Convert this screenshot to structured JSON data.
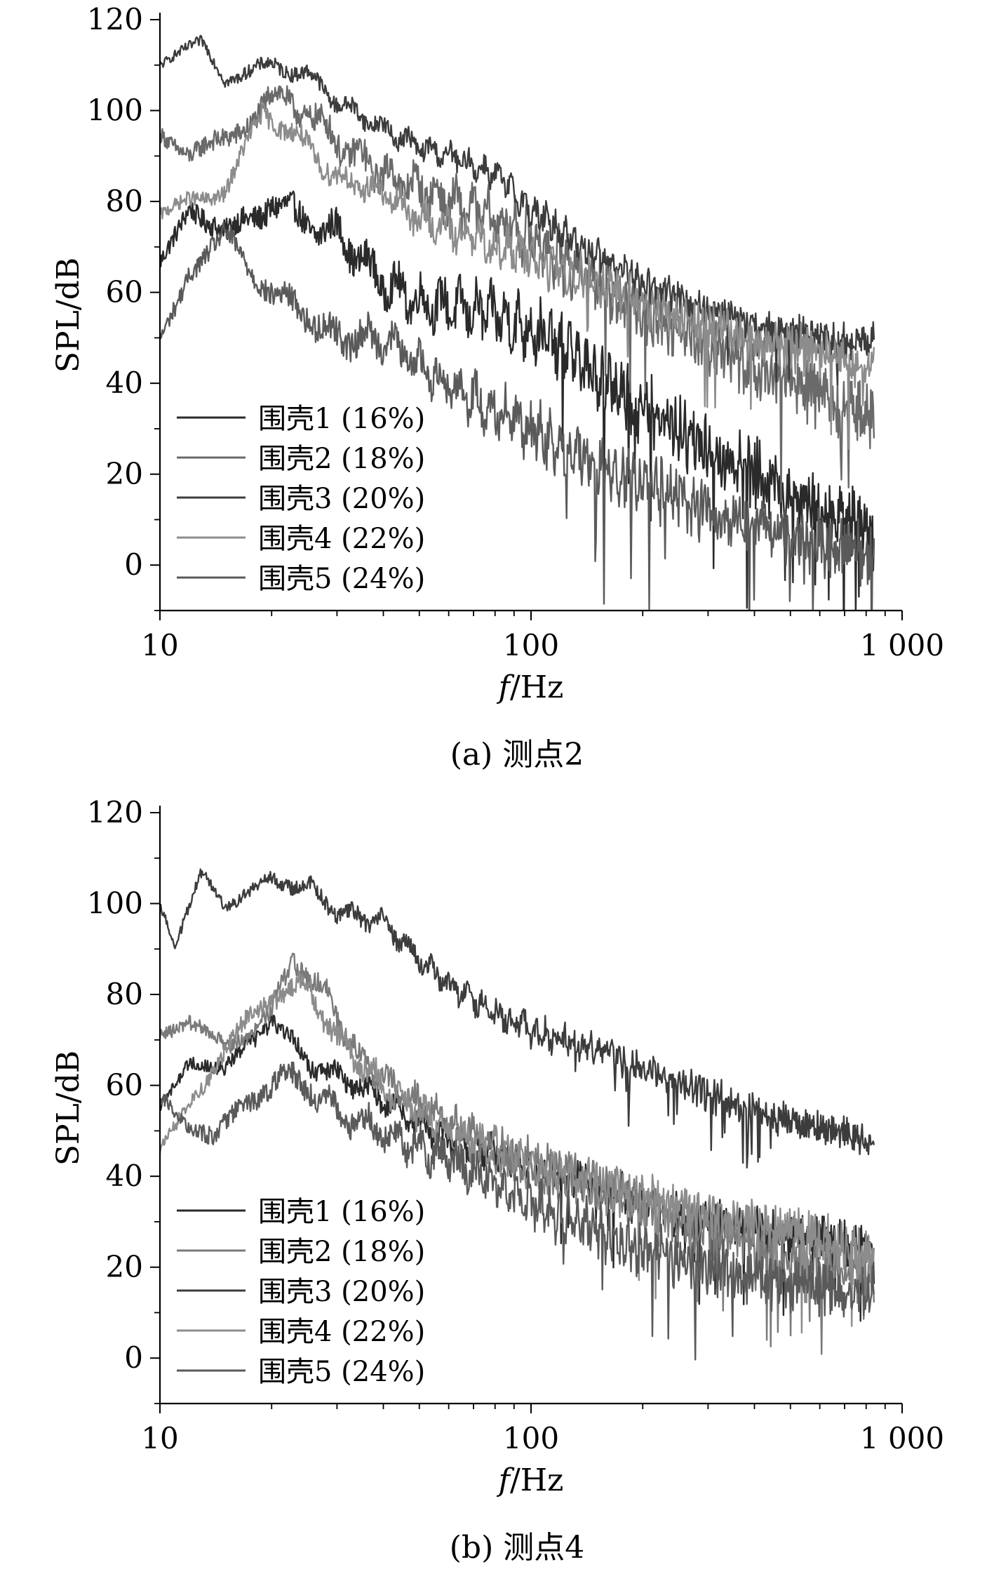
{
  "chart_data": [
    {
      "type": "line",
      "caption": "(a) 测点2",
      "xlabel_italic": "f",
      "xlabel_rest": "/Hz",
      "ylabel": "SPL/dB",
      "xscale": "log",
      "xlim": [
        10,
        1000
      ],
      "ylim": [
        -10,
        120
      ],
      "xticks": [
        10,
        100,
        1000
      ],
      "xtick_labels": [
        "10",
        "100",
        "1 000"
      ],
      "yticks": [
        0,
        20,
        40,
        60,
        80,
        100,
        120
      ],
      "ytick_labels": [
        "0",
        "20",
        "40",
        "60",
        "80",
        "100",
        "120"
      ],
      "grid": false,
      "legend_position": "bottom-left",
      "series": [
        {
          "name": "围壳1 (16%)",
          "color": "#2a2a2a",
          "noise": 10,
          "x": [
            10,
            12,
            15,
            20,
            25,
            30,
            40,
            50,
            60,
            80,
            100,
            150,
            200,
            300,
            500,
            800,
            840
          ],
          "y": [
            66,
            80,
            72,
            80,
            75,
            73,
            62,
            58,
            57,
            55,
            52,
            42,
            34,
            26,
            16,
            8,
            7
          ]
        },
        {
          "name": "围壳2 (18%)",
          "color": "#6a6a6a",
          "noise": 9,
          "x": [
            10,
            12,
            15,
            20,
            25,
            30,
            40,
            50,
            60,
            80,
            100,
            150,
            200,
            300,
            500,
            800,
            840
          ],
          "y": [
            96,
            90,
            93,
            103,
            100,
            93,
            86,
            83,
            80,
            76,
            72,
            62,
            56,
            48,
            40,
            33,
            32
          ]
        },
        {
          "name": "围壳3 (20%)",
          "color": "#3c3c3c",
          "noise": 5,
          "x": [
            10,
            13,
            15,
            20,
            25,
            30,
            40,
            50,
            60,
            80,
            100,
            150,
            200,
            300,
            500,
            800,
            840
          ],
          "y": [
            110,
            115,
            107,
            110,
            108,
            102,
            96,
            92,
            90,
            86,
            78,
            68,
            62,
            56,
            51,
            49,
            49
          ]
        },
        {
          "name": "围壳4 (22%)",
          "color": "#8c8c8c",
          "noise": 7,
          "x": [
            10,
            12,
            15,
            19,
            25,
            30,
            40,
            50,
            60,
            80,
            100,
            150,
            200,
            300,
            500,
            800,
            840
          ],
          "y": [
            76,
            81,
            82,
            100,
            92,
            85,
            82,
            76,
            74,
            70,
            68,
            62,
            57,
            52,
            48,
            44,
            44
          ]
        },
        {
          "name": "围壳5 (24%)",
          "color": "#5a5a5a",
          "noise": 9,
          "x": [
            10,
            12,
            15,
            20,
            25,
            30,
            40,
            50,
            60,
            80,
            100,
            150,
            200,
            300,
            500,
            800,
            840
          ],
          "y": [
            50,
            65,
            72,
            60,
            55,
            50,
            50,
            44,
            40,
            34,
            30,
            22,
            18,
            12,
            6,
            3,
            2
          ]
        }
      ]
    },
    {
      "type": "line",
      "caption": "(b) 测点4",
      "xlabel_italic": "f",
      "xlabel_rest": "/Hz",
      "ylabel": "SPL/dB",
      "xscale": "log",
      "xlim": [
        10,
        1000
      ],
      "ylim": [
        -10,
        120
      ],
      "xticks": [
        10,
        100,
        1000
      ],
      "xtick_labels": [
        "10",
        "100",
        "1 000"
      ],
      "yticks": [
        0,
        20,
        40,
        60,
        80,
        100,
        120
      ],
      "ytick_labels": [
        "0",
        "20",
        "40",
        "60",
        "80",
        "100",
        "120"
      ],
      "grid": false,
      "legend_position": "bottom-left",
      "series": [
        {
          "name": "围壳1 (16%)",
          "color": "#2a2a2a",
          "noise": 6,
          "x": [
            10,
            12,
            15,
            20,
            25,
            30,
            40,
            50,
            60,
            80,
            100,
            150,
            200,
            300,
            500,
            800,
            840
          ],
          "y": [
            55,
            66,
            63,
            75,
            65,
            62,
            57,
            52,
            48,
            45,
            42,
            38,
            34,
            30,
            27,
            25,
            24
          ]
        },
        {
          "name": "围壳2 (18%)",
          "color": "#7a7a7a",
          "noise": 7,
          "x": [
            10,
            12,
            15,
            20,
            23,
            28,
            35,
            45,
            60,
            80,
            100,
            150,
            200,
            300,
            500,
            800,
            840
          ],
          "y": [
            72,
            74,
            68,
            76,
            88,
            80,
            65,
            58,
            52,
            46,
            43,
            38,
            34,
            28,
            22,
            18,
            17
          ]
        },
        {
          "name": "围壳3 (20%)",
          "color": "#3c3c3c",
          "noise": 5,
          "x": [
            10,
            11,
            13,
            15,
            20,
            25,
            30,
            40,
            50,
            60,
            80,
            100,
            150,
            200,
            300,
            500,
            800,
            840
          ],
          "y": [
            100,
            90,
            107,
            100,
            105,
            104,
            98,
            96,
            88,
            82,
            76,
            72,
            68,
            64,
            58,
            52,
            48,
            48
          ]
        },
        {
          "name": "围壳4 (22%)",
          "color": "#8c8c8c",
          "noise": 7,
          "x": [
            10,
            12,
            15,
            20,
            25,
            30,
            40,
            50,
            60,
            80,
            100,
            150,
            200,
            300,
            500,
            800,
            840
          ],
          "y": [
            45,
            56,
            68,
            80,
            82,
            70,
            60,
            54,
            50,
            46,
            42,
            38,
            35,
            32,
            28,
            23,
            22
          ]
        },
        {
          "name": "围壳5 (24%)",
          "color": "#5a5a5a",
          "noise": 8,
          "x": [
            10,
            12,
            14,
            18,
            22,
            25,
            30,
            40,
            50,
            60,
            80,
            100,
            150,
            200,
            300,
            500,
            800,
            840
          ],
          "y": [
            58,
            52,
            48,
            58,
            62,
            60,
            54,
            50,
            46,
            44,
            38,
            34,
            28,
            24,
            20,
            16,
            14,
            14
          ]
        }
      ]
    }
  ]
}
